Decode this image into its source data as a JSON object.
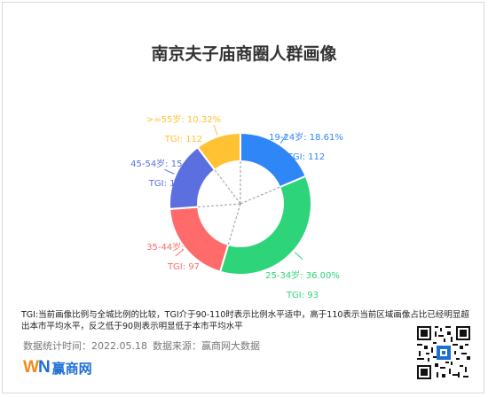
{
  "title": "南京夫子庙商圈人群画像",
  "chart_data": {
    "type": "pie",
    "title": "南京夫子庙商圈人群画像",
    "categories": [
      "19-24岁",
      "25-34岁",
      "35-44岁",
      "45-54岁",
      ">=55岁"
    ],
    "values": [
      18.61,
      36.0,
      19.21,
      15.85,
      10.32
    ],
    "unit": "%",
    "tgi": [
      112,
      93,
      97,
      103,
      112
    ],
    "colors": [
      "#2f86f6",
      "#2ed47a",
      "#ff6b6b",
      "#5b6fe0",
      "#ffc233"
    ],
    "label_texts": [
      "19-24岁: 18.61%",
      "25-34岁: 36.00%",
      "35-44岁: 19.21%",
      "45-54岁: 15.85%",
      ">=55岁: 10.32%"
    ],
    "tgi_texts": [
      "TGI: 112",
      "TGI: 93",
      "TGI: 97",
      "TGI: 103",
      "TGI: 112"
    ]
  },
  "note": "TGI:当前画像比例与全城比例的比较，TGI介于90-110时表示比例水平适中，高于110表示当前区域画像占比已经明显超出本市平均水平，反之低于90则表示明显低于本市平均水平",
  "meta": {
    "date": "数据统计时间：2022.05.18",
    "source": "数据来源：赢商网大数据"
  },
  "logo": {
    "mark_w": "W",
    "mark_n": "N",
    "text": "赢商网"
  }
}
